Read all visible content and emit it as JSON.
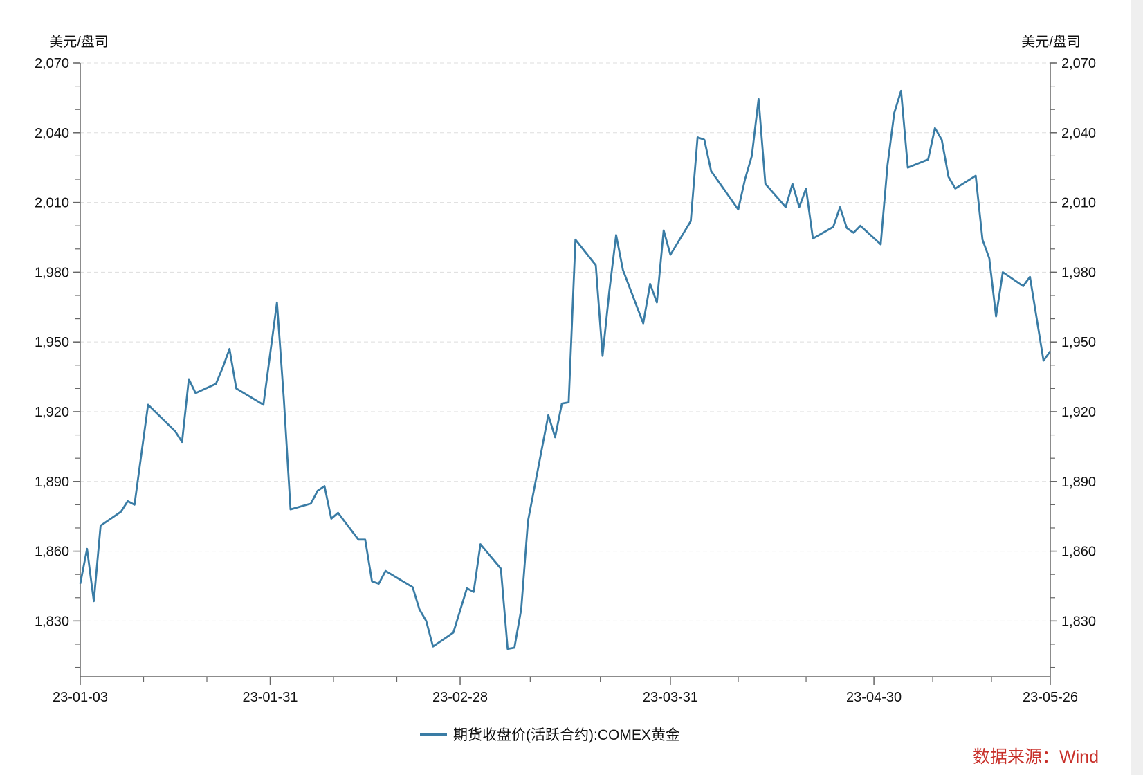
{
  "chart_data": {
    "type": "line",
    "title": "",
    "ylabel_left": "美元/盘司",
    "ylabel_right": "美元/盘司",
    "xlabel": "",
    "ylim": [
      1806,
      2070
    ],
    "yticks": [
      1830,
      1860,
      1890,
      1920,
      1950,
      1980,
      2010,
      2040,
      2070
    ],
    "ytick_labels": [
      "1,830",
      "1,860",
      "1,890",
      "1,920",
      "1,950",
      "1,980",
      "2,010",
      "2,040",
      "2,070"
    ],
    "xlim": [
      "2023-01-03",
      "2023-05-26"
    ],
    "xticks": [
      "2023-01-03",
      "2023-01-31",
      "2023-02-28",
      "2023-03-31",
      "2023-04-30",
      "2023-05-26"
    ],
    "xtick_labels": [
      "23-01-03",
      "23-01-31",
      "23-02-28",
      "23-03-31",
      "23-04-30",
      "23-05-26"
    ],
    "grid": "horizontal dashed",
    "legend": "bottom-center",
    "series": [
      {
        "name": "期货收盘价(活跃合约):COMEX黄金",
        "color": "#3a7ca5",
        "x": [
          "2023-01-03",
          "2023-01-04",
          "2023-01-05",
          "2023-01-06",
          "2023-01-09",
          "2023-01-10",
          "2023-01-11",
          "2023-01-13",
          "2023-01-17",
          "2023-01-18",
          "2023-01-19",
          "2023-01-20",
          "2023-01-23",
          "2023-01-24",
          "2023-01-25",
          "2023-01-26",
          "2023-01-30",
          "2023-02-01",
          "2023-02-02",
          "2023-02-03",
          "2023-02-06",
          "2023-02-07",
          "2023-02-08",
          "2023-02-09",
          "2023-02-10",
          "2023-02-13",
          "2023-02-14",
          "2023-02-15",
          "2023-02-16",
          "2023-02-17",
          "2023-02-21",
          "2023-02-22",
          "2023-02-23",
          "2023-02-24",
          "2023-02-27",
          "2023-03-01",
          "2023-03-02",
          "2023-03-03",
          "2023-03-06",
          "2023-03-07",
          "2023-03-08",
          "2023-03-09",
          "2023-03-10",
          "2023-03-13",
          "2023-03-14",
          "2023-03-15",
          "2023-03-16",
          "2023-03-17",
          "2023-03-20",
          "2023-03-21",
          "2023-03-22",
          "2023-03-23",
          "2023-03-24",
          "2023-03-27",
          "2023-03-28",
          "2023-03-29",
          "2023-03-30",
          "2023-03-31",
          "2023-04-03",
          "2023-04-04",
          "2023-04-05",
          "2023-04-06",
          "2023-04-10",
          "2023-04-11",
          "2023-04-12",
          "2023-04-13",
          "2023-04-14",
          "2023-04-17",
          "2023-04-18",
          "2023-04-19",
          "2023-04-20",
          "2023-04-21",
          "2023-04-24",
          "2023-04-25",
          "2023-04-26",
          "2023-04-27",
          "2023-04-28",
          "2023-05-01",
          "2023-05-02",
          "2023-05-03",
          "2023-05-04",
          "2023-05-05",
          "2023-05-08",
          "2023-05-09",
          "2023-05-10",
          "2023-05-11",
          "2023-05-12",
          "2023-05-15",
          "2023-05-16",
          "2023-05-17",
          "2023-05-18",
          "2023-05-19",
          "2023-05-22",
          "2023-05-23",
          "2023-05-25",
          "2023-05-26"
        ],
        "values": [
          1846,
          1861,
          1838.5,
          1871,
          1877,
          1881.5,
          1880,
          1923,
          1911.5,
          1907,
          1934,
          1928,
          1932,
          1939,
          1947,
          1930,
          1923,
          1967,
          1926,
          1878,
          1880.5,
          1886,
          1888,
          1874,
          1876.5,
          1865,
          1865,
          1847,
          1846,
          1851.5,
          1844.5,
          1835,
          1830,
          1819,
          1825,
          1844,
          1842.5,
          1863,
          1852.5,
          1818,
          1818.5,
          1835,
          1873,
          1918.5,
          1909,
          1923.5,
          1924,
          1994,
          1983,
          1944,
          1972,
          1996,
          1981,
          1958,
          1975,
          1967,
          1998,
          1987.5,
          2002,
          2038,
          2037,
          2023.5,
          2007,
          2020,
          2030,
          2054.5,
          2018,
          2008,
          2018,
          2008,
          2016,
          1994.5,
          1999.5,
          2008,
          1999,
          1997,
          2000,
          1992,
          2026,
          2048.5,
          2058,
          2025,
          2028.5,
          2042,
          2037,
          2021,
          2016,
          2021.5,
          1994,
          1986,
          1961,
          1980,
          1974,
          1978,
          1942,
          1946
        ]
      }
    ]
  },
  "source": "数据来源：Wind"
}
